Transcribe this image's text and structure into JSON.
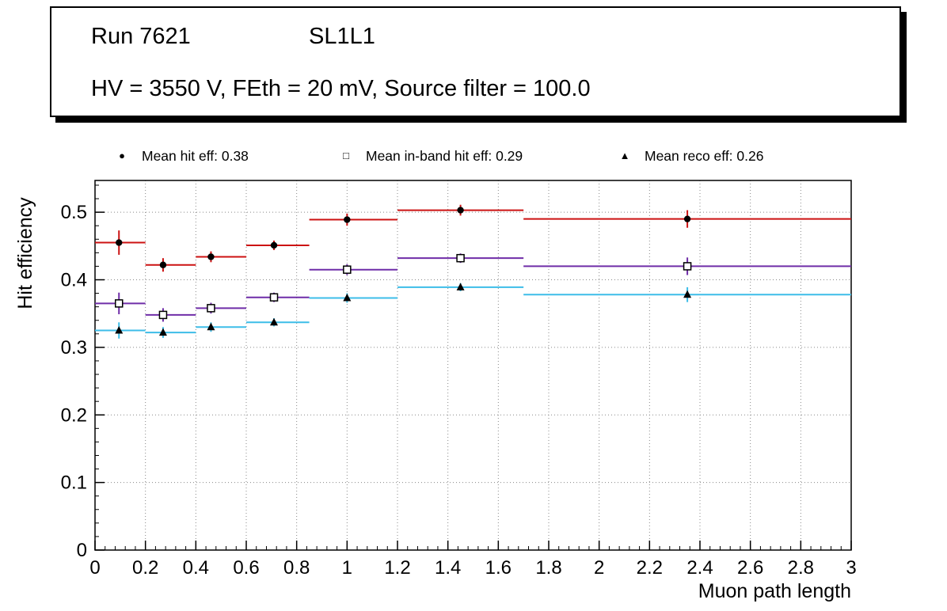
{
  "page": {
    "background": "#ffffff"
  },
  "title_box": {
    "run_label": "Run 7621",
    "chamber_label": "SL1L1",
    "conditions": "HV = 3550 V, FEth = 20 mV, Source filter = 100.0"
  },
  "chart_data": {
    "type": "scatter",
    "title": "Run 7621 SL1L1",
    "xlabel": "Muon path length",
    "ylabel": "Hit efficiency",
    "xlim": [
      0,
      3
    ],
    "ylim": [
      0,
      0.547
    ],
    "grid": "dotted",
    "legend_position": "top",
    "x_ticks": [
      0,
      0.2,
      0.4,
      0.6,
      0.8,
      1,
      1.2,
      1.4,
      1.6,
      1.8,
      2,
      2.2,
      2.4,
      2.6,
      2.8,
      3
    ],
    "x_tick_labels": [
      "0",
      "0.2",
      "0.4",
      "0.6",
      "0.8",
      "1",
      "1.2",
      "1.4",
      "1.6",
      "1.8",
      "2",
      "2.2",
      "2.4",
      "2.6",
      "2.8",
      "3"
    ],
    "y_ticks": [
      0,
      0.1,
      0.2,
      0.3,
      0.4,
      0.5
    ],
    "y_tick_labels": [
      "0",
      "0.1",
      "0.2",
      "0.3",
      "0.4",
      "0.5"
    ],
    "bin_edges": [
      0,
      0.2,
      0.4,
      0.6,
      0.85,
      1.2,
      1.7,
      3.0
    ],
    "bin_centers": [
      0.095,
      0.27,
      0.46,
      0.71,
      1.0,
      1.45,
      2.35
    ],
    "series": [
      {
        "name": "hit_eff",
        "legend_label": "Mean hit  eff: 0.38",
        "mean": 0.38,
        "marker": "filled-circle",
        "marker_glyph": "●",
        "line_color": "#cc1212",
        "marker_color": "#000000",
        "values": [
          0.455,
          0.422,
          0.434,
          0.451,
          0.489,
          0.503,
          0.49
        ],
        "yerr": [
          0.018,
          0.01,
          0.008,
          0.007,
          0.009,
          0.008,
          0.013
        ]
      },
      {
        "name": "inband_hit_eff",
        "legend_label": "Mean in-band hit eff: 0.29",
        "mean": 0.29,
        "marker": "open-square",
        "marker_glyph": "□",
        "line_color": "#6f2da8",
        "marker_color": "#000000",
        "values": [
          0.365,
          0.348,
          0.358,
          0.374,
          0.415,
          0.432,
          0.42
        ],
        "yerr": [
          0.016,
          0.01,
          0.008,
          0.007,
          0.008,
          0.007,
          0.013
        ]
      },
      {
        "name": "reco_eff",
        "legend_label": "Mean reco eff: 0.26",
        "mean": 0.26,
        "marker": "filled-triangle",
        "marker_glyph": "▲",
        "line_color": "#3dbde8",
        "marker_color": "#000000",
        "values": [
          0.325,
          0.322,
          0.33,
          0.337,
          0.373,
          0.389,
          0.378
        ],
        "yerr": [
          0.012,
          0.008,
          0.007,
          0.006,
          0.007,
          0.006,
          0.011
        ]
      }
    ]
  }
}
